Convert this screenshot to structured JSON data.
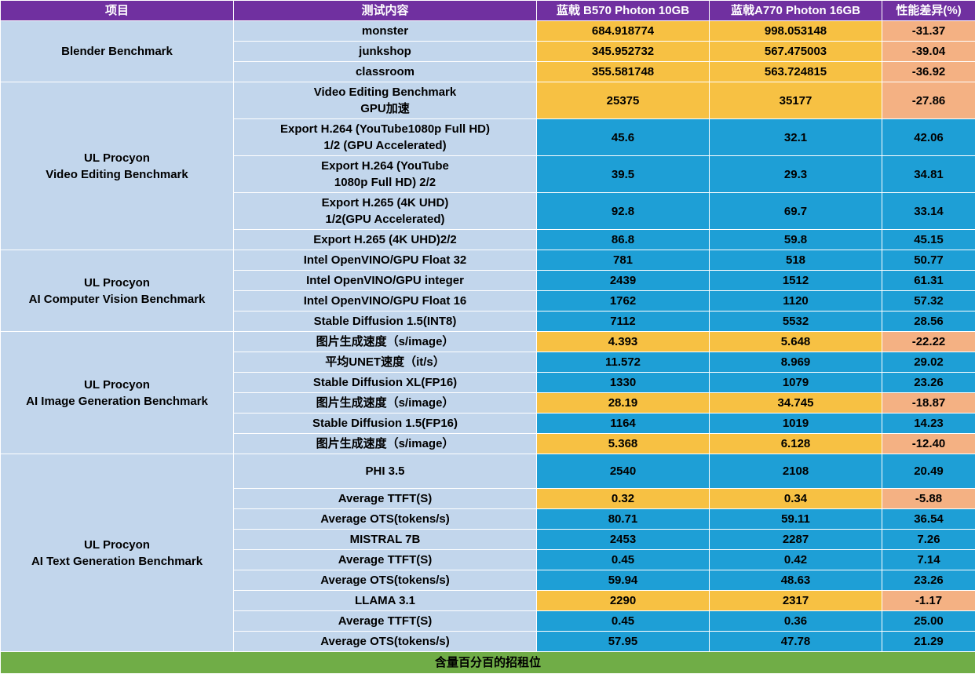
{
  "colors": {
    "header_bg": "#7030a0",
    "header_text": "#ffffff",
    "lightblue": "#c2d6ec",
    "orange": "#f7c143",
    "cyan": "#1e9fd6",
    "salmon": "#f4b183",
    "footer_bg": "#70ad47",
    "border": "#ffffff"
  },
  "headers": {
    "category": "项目",
    "test": "测试内容",
    "col_b570": "蓝戟 B570 Photon 10GB",
    "col_a770": "蓝戟A770 Photon 16GB",
    "diff": "性能差异(%)"
  },
  "rows": [
    {
      "cat": "Blender Benchmark",
      "cat_rowspan": 3,
      "test": "monster",
      "v1": "684.918774",
      "v2": "998.053148",
      "diff": "-31.37",
      "test_bg": "lightblue",
      "v_bg": "orange",
      "diff_bg": "salmon"
    },
    {
      "test": "junkshop",
      "v1": "345.952732",
      "v2": "567.475003",
      "diff": "-39.04",
      "test_bg": "lightblue",
      "v_bg": "orange",
      "diff_bg": "salmon"
    },
    {
      "test": "classroom",
      "v1": "355.581748",
      "v2": "563.724815",
      "diff": "-36.92",
      "test_bg": "lightblue",
      "v_bg": "orange",
      "diff_bg": "salmon"
    },
    {
      "cat": "UL Procyon\nVideo Editing Benchmark",
      "cat_rowspan": 5,
      "test": "Video Editing Benchmark\nGPU加速",
      "v1": "25375",
      "v2": "35177",
      "diff": "-27.86",
      "test_bg": "lightblue",
      "v_bg": "orange",
      "diff_bg": "salmon",
      "test_multiline": true,
      "cat_multiline": true
    },
    {
      "test": "Export H.264 (YouTube1080p Full HD)\n1/2 (GPU Accelerated)",
      "v1": "45.6",
      "v2": "32.1",
      "diff": "42.06",
      "test_bg": "lightblue",
      "v_bg": "cyan",
      "diff_bg": "cyan",
      "test_multiline": true
    },
    {
      "test": "Export H.264 (YouTube\n1080p Full HD) 2/2",
      "v1": "39.5",
      "v2": "29.3",
      "diff": "34.81",
      "test_bg": "lightblue",
      "v_bg": "cyan",
      "diff_bg": "cyan",
      "test_multiline": true
    },
    {
      "test": "Export H.265 (4K UHD)\n1/2(GPU Accelerated)",
      "v1": "92.8",
      "v2": "69.7",
      "diff": "33.14",
      "test_bg": "lightblue",
      "v_bg": "cyan",
      "diff_bg": "cyan",
      "test_multiline": true
    },
    {
      "test": "Export H.265 (4K UHD)2/2",
      "v1": "86.8",
      "v2": "59.8",
      "diff": "45.15",
      "test_bg": "lightblue",
      "v_bg": "cyan",
      "diff_bg": "cyan"
    },
    {
      "cat": "UL Procyon\nAI Computer Vision Benchmark",
      "cat_rowspan": 4,
      "test": "Intel OpenVINO/GPU Float 32",
      "v1": "781",
      "v2": "518",
      "diff": "50.77",
      "test_bg": "lightblue",
      "v_bg": "cyan",
      "diff_bg": "cyan",
      "cat_multiline": true
    },
    {
      "test": "Intel OpenVINO/GPU integer",
      "v1": "2439",
      "v2": "1512",
      "diff": "61.31",
      "test_bg": "lightblue",
      "v_bg": "cyan",
      "diff_bg": "cyan"
    },
    {
      "test": "Intel OpenVINO/GPU Float 16",
      "v1": "1762",
      "v2": "1120",
      "diff": "57.32",
      "test_bg": "lightblue",
      "v_bg": "cyan",
      "diff_bg": "cyan"
    },
    {
      "test": "Stable Diffusion 1.5(INT8)",
      "v1": "7112",
      "v2": "5532",
      "diff": "28.56",
      "test_bg": "lightblue",
      "v_bg": "cyan",
      "diff_bg": "cyan"
    },
    {
      "cat": "UL Procyon\nAI Image Generation Benchmark",
      "cat_rowspan": 6,
      "test": "图片生成速度（s/image）",
      "v1": "4.393",
      "v2": "5.648",
      "diff": "-22.22",
      "test_bg": "lightblue",
      "v_bg": "orange",
      "diff_bg": "salmon",
      "cat_multiline": true
    },
    {
      "test": "平均UNET速度（it/s）",
      "v1": "11.572",
      "v2": "8.969",
      "diff": "29.02",
      "test_bg": "lightblue",
      "v_bg": "cyan",
      "diff_bg": "cyan"
    },
    {
      "test": "Stable Diffusion XL(FP16)",
      "v1": "1330",
      "v2": "1079",
      "diff": "23.26",
      "test_bg": "lightblue",
      "v_bg": "cyan",
      "diff_bg": "cyan"
    },
    {
      "test": "图片生成速度（s/image）",
      "v1": "28.19",
      "v2": "34.745",
      "diff": "-18.87",
      "test_bg": "lightblue",
      "v_bg": "orange",
      "diff_bg": "salmon"
    },
    {
      "test": "Stable Diffusion 1.5(FP16)",
      "v1": "1164",
      "v2": "1019",
      "diff": "14.23",
      "test_bg": "lightblue",
      "v_bg": "cyan",
      "diff_bg": "cyan"
    },
    {
      "test": "图片生成速度（s/image）",
      "v1": "5.368",
      "v2": "6.128",
      "diff": "-12.40",
      "test_bg": "lightblue",
      "v_bg": "orange",
      "diff_bg": "salmon"
    },
    {
      "cat": "UL Procyon\nAI Text Generation Benchmark",
      "cat_rowspan": 9,
      "test": "PHI 3.5",
      "v1": "2540",
      "v2": "2108",
      "diff": "20.49",
      "test_bg": "lightblue",
      "v_bg": "cyan",
      "diff_bg": "cyan",
      "cat_multiline": true,
      "tall": true
    },
    {
      "test": "Average TTFT(S)",
      "v1": "0.32",
      "v2": "0.34",
      "diff": "-5.88",
      "test_bg": "lightblue",
      "v_bg": "orange",
      "diff_bg": "salmon"
    },
    {
      "test": "Average OTS(tokens/s)",
      "v1": "80.71",
      "v2": "59.11",
      "diff": "36.54",
      "test_bg": "lightblue",
      "v_bg": "cyan",
      "diff_bg": "cyan"
    },
    {
      "test": "MISTRAL 7B",
      "v1": "2453",
      "v2": "2287",
      "diff": "7.26",
      "test_bg": "lightblue",
      "v_bg": "cyan",
      "diff_bg": "cyan"
    },
    {
      "test": "Average TTFT(S)",
      "v1": "0.45",
      "v2": "0.42",
      "diff": "7.14",
      "test_bg": "lightblue",
      "v_bg": "cyan",
      "diff_bg": "cyan"
    },
    {
      "test": "Average OTS(tokens/s)",
      "v1": "59.94",
      "v2": "48.63",
      "diff": "23.26",
      "test_bg": "lightblue",
      "v_bg": "cyan",
      "diff_bg": "cyan"
    },
    {
      "test": "LLAMA 3.1",
      "v1": "2290",
      "v2": "2317",
      "diff": "-1.17",
      "test_bg": "lightblue",
      "v_bg": "orange",
      "diff_bg": "salmon"
    },
    {
      "test": "Average TTFT(S)",
      "v1": "0.45",
      "v2": "0.36",
      "diff": "25.00",
      "test_bg": "lightblue",
      "v_bg": "cyan",
      "diff_bg": "cyan"
    },
    {
      "test": "Average OTS(tokens/s)",
      "v1": "57.95",
      "v2": "47.78",
      "diff": "21.29",
      "test_bg": "lightblue",
      "v_bg": "cyan",
      "diff_bg": "cyan"
    }
  ],
  "footer": "含量百分百的招租位"
}
